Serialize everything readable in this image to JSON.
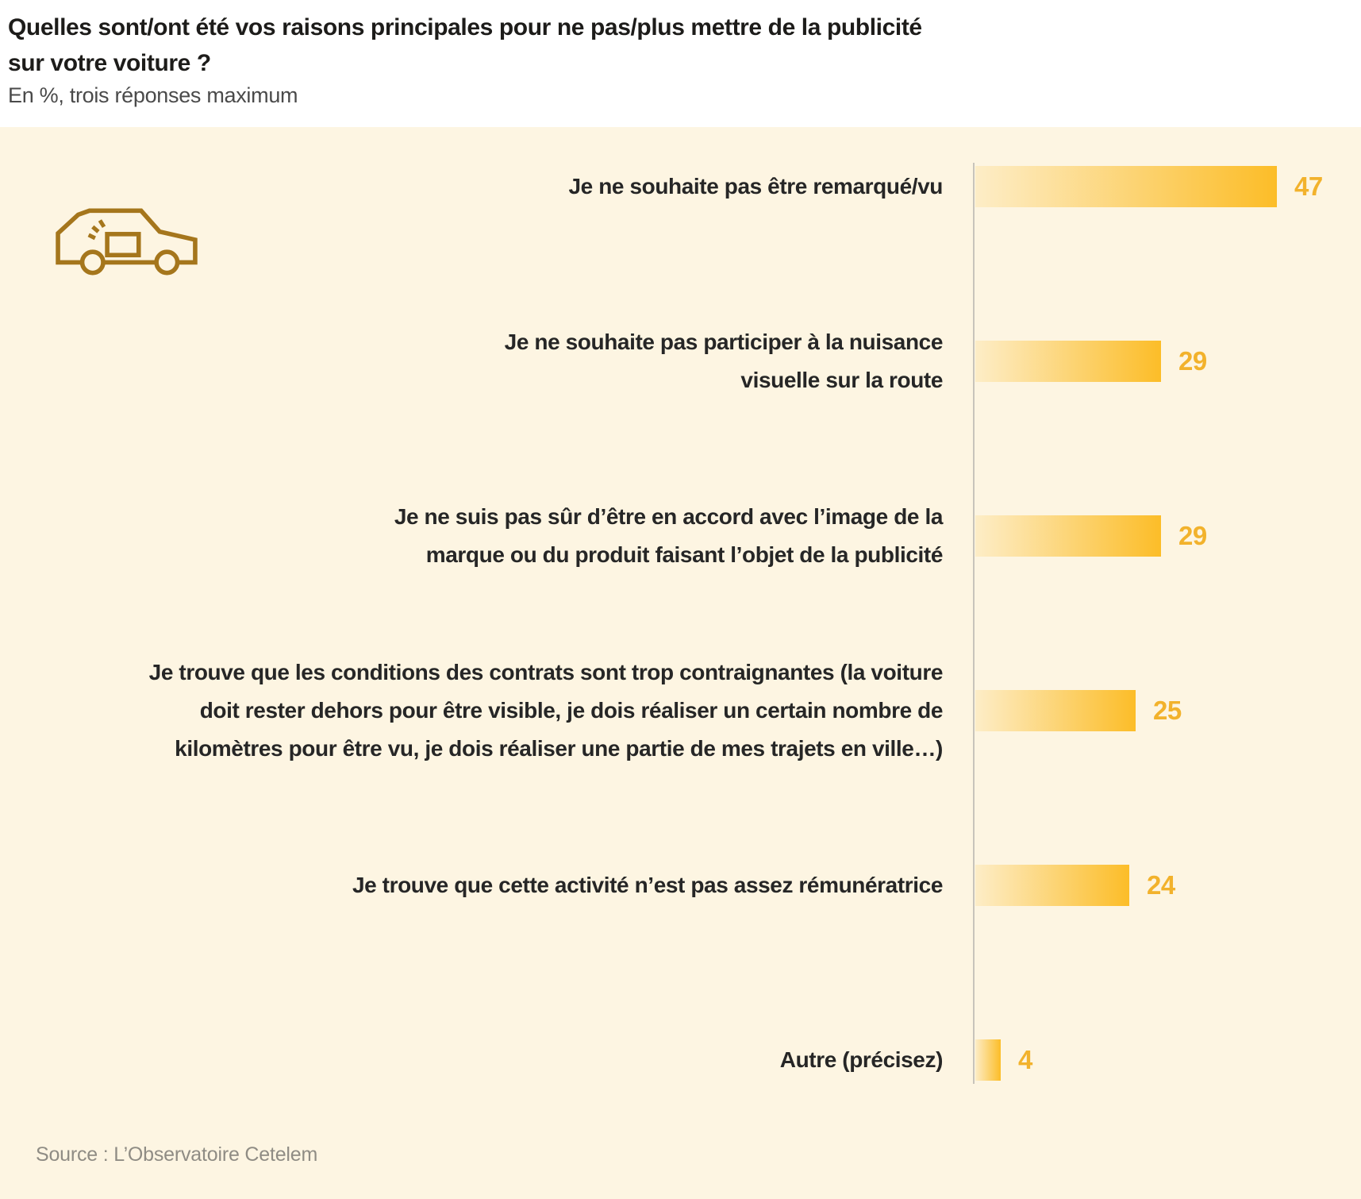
{
  "header": {
    "title_lines": [
      "Quelles sont/ont été vos raisons principales pour ne pas/plus mettre de la publicité",
      "sur votre voiture ?"
    ],
    "subtitle": "En %, trois réponses maximum"
  },
  "chart_data": {
    "type": "bar",
    "orientation": "horizontal",
    "unit": "%",
    "title": "Quelles sont/ont été vos raisons principales pour ne pas/plus mettre de la publicité sur votre voiture ?",
    "subtitle": "En %, trois réponses maximum",
    "categories": [
      "Je ne souhaite pas être remarqué/vu",
      "Je ne souhaite pas participer à la nuisance visuelle sur la route",
      "Je ne suis pas sûr d’être en accord avec l’image de la marque ou du produit faisant l’objet de la publicité",
      "Je trouve que les conditions des contrats sont trop contraignantes (la voiture doit rester dehors pour être visible, je dois réaliser un certain nombre de kilomètres pour être vu, je dois réaliser une partie de mes trajets en ville…)",
      "Je trouve que cette activité n’est pas assez rémunératrice",
      "Autre (précisez)"
    ],
    "category_lines": [
      [
        "Je ne souhaite pas être remarqué/vu"
      ],
      [
        "Je ne souhaite pas participer à la nuisance",
        "visuelle sur la route"
      ],
      [
        "Je ne suis pas sûr d’être en accord avec l’image de la",
        "marque ou du produit faisant l’objet de la publicité"
      ],
      [
        "Je trouve que les conditions des contrats sont trop contraignantes (la voiture",
        "doit rester dehors pour être visible, je dois réaliser un certain nombre de",
        "kilomètres pour être vu, je dois réaliser une partie de mes trajets en ville…)"
      ],
      [
        "Je trouve que cette activité n’est pas assez rémunératrice"
      ],
      [
        "Autre (précisez)"
      ]
    ],
    "values": [
      47,
      29,
      29,
      25,
      24,
      4
    ],
    "xlim": [
      0,
      47
    ],
    "grid": false,
    "legend": false,
    "bar_gradient": [
      "#fdedc7",
      "#fcbd28"
    ],
    "value_label_color": "#f2b22c",
    "axis_line_color": "#c8c4bb",
    "plot_background": "#fdf5e2"
  },
  "icons": {
    "car": "car-with-ad-panel-icon",
    "car_color": "#a5761c"
  },
  "footer": {
    "source": "Source : L’Observatoire Cetelem"
  }
}
